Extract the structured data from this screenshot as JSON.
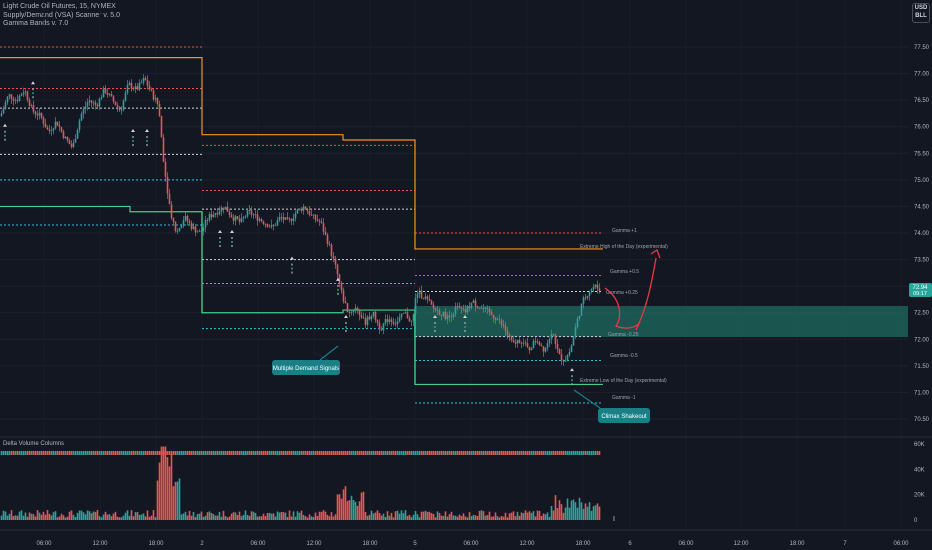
{
  "header": {
    "symbol_line": "Light Crude Oil Futures, 15, NYMEX",
    "indicator1": "Supply/Demand (VSA) Scanner v. 5.0",
    "indicator2": "Gamma Bands v. 7.0",
    "currency_top": "USD",
    "currency_bottom": "BLL"
  },
  "price_axis": {
    "ticks": [
      "77.50",
      "77.00",
      "76.50",
      "76.00",
      "75.50",
      "75.00",
      "74.50",
      "74.00",
      "73.50",
      "73.00",
      "72.50",
      "72.00",
      "71.50",
      "71.00",
      "70.50"
    ],
    "last_price": "72.94",
    "last_countdown": "09:17"
  },
  "volume_axis": {
    "ticks": [
      "60K",
      "40K",
      "20K",
      "0"
    ]
  },
  "time_axis": {
    "ticks": [
      "06:00",
      "12:00",
      "18:00",
      "2",
      "06:00",
      "12:00",
      "18:00",
      "5",
      "06:00",
      "12:00",
      "18:00",
      "6",
      "06:00",
      "12:00",
      "18:00",
      "7",
      "06:00"
    ]
  },
  "volume_pane": {
    "title": "Delta Volume Columns"
  },
  "labels": {
    "gamma_plus1": "Gamma +1",
    "extreme_high": "Extreme High of the Day (experimental)",
    "gamma_plus05": "Gamma +0.5",
    "gamma_plus025": "Gamma +0.25",
    "gamma_minus025": "Gamma -0.25",
    "gamma_minus05": "Gamma -0.5",
    "extreme_low": "Extreme Low of the Day (experimental)",
    "gamma_minus1": "Gamma -1"
  },
  "callouts": {
    "demand": "Multiple Demand Signals",
    "climax": "Climax Shakeout"
  },
  "colors": {
    "background": "#131722",
    "up": "#26a69a",
    "down": "#ef5350",
    "orange": "#f7931a",
    "green_line": "#3fd18b",
    "zone": "#1d6b60",
    "callout": "#1a7f86",
    "arrow": "#e53945"
  },
  "chart_data": {
    "type": "candlestick",
    "title": "Light Crude Oil Futures, 15, NYMEX",
    "ylim": [
      70.3,
      77.9
    ],
    "x_ticks": [
      "06:00",
      "12:00",
      "18:00",
      "2",
      "06:00",
      "12:00",
      "18:00",
      "5",
      "06:00",
      "12:00",
      "18:00",
      "6",
      "06:00",
      "12:00",
      "18:00",
      "7",
      "06:00"
    ],
    "price_path": [
      [
        0,
        76.2
      ],
      [
        8,
        76.6
      ],
      [
        16,
        76.5
      ],
      [
        24,
        76.7
      ],
      [
        32,
        76.3
      ],
      [
        40,
        76.2
      ],
      [
        48,
        75.9
      ],
      [
        56,
        76.1
      ],
      [
        64,
        75.8
      ],
      [
        72,
        75.6
      ],
      [
        80,
        76.2
      ],
      [
        88,
        76.5
      ],
      [
        96,
        76.4
      ],
      [
        104,
        76.7
      ],
      [
        112,
        76.5
      ],
      [
        120,
        76.3
      ],
      [
        128,
        76.8
      ],
      [
        136,
        76.7
      ],
      [
        144,
        76.9
      ],
      [
        152,
        76.6
      ],
      [
        158,
        76.4
      ],
      [
        164,
        75.2
      ],
      [
        170,
        74.4
      ],
      [
        176,
        74.0
      ],
      [
        184,
        74.3
      ],
      [
        192,
        74.1
      ],
      [
        200,
        74.0
      ],
      [
        208,
        74.3
      ],
      [
        216,
        74.4
      ],
      [
        224,
        74.5
      ],
      [
        232,
        74.3
      ],
      [
        240,
        74.2
      ],
      [
        248,
        74.4
      ],
      [
        256,
        74.3
      ],
      [
        264,
        74.2
      ],
      [
        272,
        74.1
      ],
      [
        280,
        74.3
      ],
      [
        288,
        74.2
      ],
      [
        296,
        74.4
      ],
      [
        304,
        74.5
      ],
      [
        312,
        74.3
      ],
      [
        320,
        74.2
      ],
      [
        328,
        73.8
      ],
      [
        336,
        73.3
      ],
      [
        342,
        72.8
      ],
      [
        348,
        72.5
      ],
      [
        356,
        72.6
      ],
      [
        364,
        72.3
      ],
      [
        372,
        72.5
      ],
      [
        380,
        72.2
      ],
      [
        388,
        72.4
      ],
      [
        396,
        72.3
      ],
      [
        404,
        72.5
      ],
      [
        412,
        72.3
      ],
      [
        416,
        72.9
      ],
      [
        424,
        72.8
      ],
      [
        432,
        72.6
      ],
      [
        440,
        72.5
      ],
      [
        448,
        72.4
      ],
      [
        456,
        72.6
      ],
      [
        464,
        72.5
      ],
      [
        472,
        72.7
      ],
      [
        480,
        72.6
      ],
      [
        488,
        72.5
      ],
      [
        496,
        72.4
      ],
      [
        504,
        72.2
      ],
      [
        512,
        71.9
      ],
      [
        520,
        72.0
      ],
      [
        528,
        71.8
      ],
      [
        536,
        72.0
      ],
      [
        544,
        71.8
      ],
      [
        552,
        72.2
      ],
      [
        558,
        71.7
      ],
      [
        564,
        71.6
      ],
      [
        570,
        71.8
      ],
      [
        576,
        72.3
      ],
      [
        582,
        72.7
      ],
      [
        588,
        72.9
      ],
      [
        594,
        73.0
      ],
      [
        600,
        72.94
      ]
    ],
    "levels": [
      {
        "name": "Gamma +1",
        "value": 74.0
      },
      {
        "name": "Extreme High of the Day (experimental)",
        "value": 73.7
      },
      {
        "name": "Gamma +0.5",
        "value": 73.2
      },
      {
        "name": "Gamma +0.25",
        "value": 72.9
      },
      {
        "name": "Gamma -0.25",
        "value": 72.05
      },
      {
        "name": "Gamma -0.5",
        "value": 71.6
      },
      {
        "name": "Extreme Low of the Day (experimental)",
        "value": 71.15
      },
      {
        "name": "Gamma -1",
        "value": 70.8
      }
    ],
    "volume_peak": 58000
  }
}
